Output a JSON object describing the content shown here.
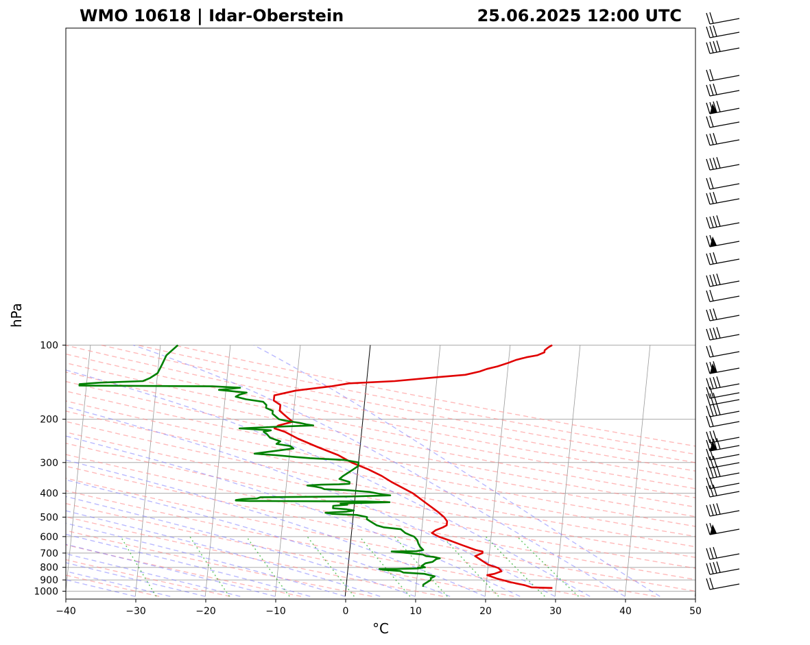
{
  "chart_data": {
    "type": "line",
    "title_left": "WMO 10618 | Idar-Oberstein",
    "title_right": "25.06.2025 12:00 UTC",
    "xlabel": "°C",
    "ylabel": "hPa",
    "xlim": [
      -40,
      50
    ],
    "ylim": [
      1000,
      100
    ],
    "y_scale": "log",
    "x_ticks": [
      -40,
      -30,
      -20,
      -10,
      0,
      10,
      20,
      30,
      40,
      50
    ],
    "x_tick_labels": [
      "−40",
      "−30",
      "−20",
      "−10",
      "0",
      "10",
      "20",
      "30",
      "40",
      "50"
    ],
    "y_ticks": [
      1000,
      900,
      800,
      700,
      600,
      500,
      400,
      300,
      200,
      100
    ],
    "y_tick_labels": [
      "1000",
      "900",
      "800",
      "700",
      "600",
      "500",
      "400",
      "300",
      "200",
      "100"
    ],
    "grid": true,
    "series": [
      {
        "color": "#e00000",
        "points": [
          [
            970,
            29.5
          ],
          [
            965,
            26.5
          ],
          [
            945,
            25.5
          ],
          [
            920,
            23.5
          ],
          [
            890,
            21.5
          ],
          [
            860,
            20
          ],
          [
            850,
            21
          ],
          [
            830,
            22
          ],
          [
            805,
            21.5
          ],
          [
            780,
            20
          ],
          [
            750,
            19
          ],
          [
            720,
            18
          ],
          [
            700,
            19
          ],
          [
            690,
            19
          ],
          [
            680,
            18
          ],
          [
            650,
            16
          ],
          [
            620,
            14
          ],
          [
            600,
            12.5
          ],
          [
            580,
            11.5
          ],
          [
            565,
            12
          ],
          [
            550,
            13
          ],
          [
            540,
            13.5
          ],
          [
            520,
            13.5
          ],
          [
            500,
            13
          ],
          [
            475,
            12
          ],
          [
            440,
            10.3
          ],
          [
            400,
            8.2
          ],
          [
            360,
            5
          ],
          [
            340,
            3.5
          ],
          [
            320,
            1.5
          ],
          [
            300,
            -1
          ],
          [
            280,
            -3
          ],
          [
            260,
            -6
          ],
          [
            240,
            -9
          ],
          [
            225,
            -11
          ],
          [
            218,
            -12.5
          ],
          [
            212,
            -12
          ],
          [
            205,
            -10
          ],
          [
            195,
            -11
          ],
          [
            185,
            -12
          ],
          [
            175,
            -12
          ],
          [
            168,
            -13
          ],
          [
            160,
            -13
          ],
          [
            153,
            -10
          ],
          [
            147,
            -5
          ],
          [
            143,
            -2.5
          ],
          [
            140,
            4
          ],
          [
            135,
            10
          ],
          [
            132,
            14
          ],
          [
            128,
            16
          ],
          [
            125,
            17
          ],
          [
            122,
            18.5
          ],
          [
            118,
            20
          ],
          [
            115,
            21
          ],
          [
            112,
            22.5
          ],
          [
            110,
            24
          ],
          [
            107,
            25
          ],
          [
            105,
            25
          ],
          [
            102,
            25.5
          ],
          [
            100,
            26
          ]
        ]
      },
      {
        "color": "#008000",
        "points": [
          [
            960,
            11
          ],
          [
            940,
            11
          ],
          [
            920,
            11.5
          ],
          [
            900,
            12
          ],
          [
            885,
            12
          ],
          [
            870,
            12.5
          ],
          [
            850,
            11
          ],
          [
            840,
            8
          ],
          [
            828,
            7.5
          ],
          [
            818,
            5
          ],
          [
            812,
            4.5
          ],
          [
            812,
            7
          ],
          [
            810,
            9
          ],
          [
            808,
            10
          ],
          [
            803,
            10.5
          ],
          [
            802,
            10
          ],
          [
            800,
            11
          ],
          [
            790,
            10.5
          ],
          [
            770,
            11
          ],
          [
            760,
            12
          ],
          [
            740,
            12.5
          ],
          [
            735,
            13
          ],
          [
            725,
            12
          ],
          [
            720,
            11
          ],
          [
            710,
            10.5
          ],
          [
            700,
            8.5
          ],
          [
            690,
            6
          ],
          [
            688,
            9.5
          ],
          [
            680,
            10.5
          ],
          [
            660,
            10
          ],
          [
            640,
            9.7
          ],
          [
            620,
            9.5
          ],
          [
            600,
            9
          ],
          [
            590,
            8.3
          ],
          [
            580,
            7.7
          ],
          [
            560,
            7
          ],
          [
            550,
            4.5
          ],
          [
            540,
            3.5
          ],
          [
            520,
            2.5
          ],
          [
            510,
            2
          ],
          [
            500,
            2
          ],
          [
            490,
            0.5
          ],
          [
            485,
            -3
          ],
          [
            480,
            -4
          ],
          [
            475,
            -1
          ],
          [
            470,
            0
          ],
          [
            465,
            -1
          ],
          [
            460,
            -3
          ],
          [
            450,
            -3
          ],
          [
            445,
            -1
          ],
          [
            440,
            -2
          ],
          [
            435,
            5
          ],
          [
            432,
            1.5
          ],
          [
            430,
            -15
          ],
          [
            428,
            -17
          ],
          [
            426,
            -17
          ],
          [
            422,
            -16
          ],
          [
            420,
            -14
          ],
          [
            415,
            -13.5
          ],
          [
            412,
            0
          ],
          [
            408,
            5
          ],
          [
            405,
            4
          ],
          [
            400,
            3
          ],
          [
            395,
            2
          ],
          [
            388,
            -1.5
          ],
          [
            385,
            -4.5
          ],
          [
            380,
            -5
          ],
          [
            375,
            -6
          ],
          [
            372,
            -7
          ],
          [
            369,
            -5
          ],
          [
            368,
            -2.5
          ],
          [
            366,
            -1
          ],
          [
            360,
            -1
          ],
          [
            350,
            -2.5
          ],
          [
            340,
            -2
          ],
          [
            325,
            -1
          ],
          [
            310,
            0
          ],
          [
            300,
            0
          ],
          [
            293,
            -2
          ],
          [
            288,
            -7
          ],
          [
            285,
            -9
          ],
          [
            280,
            -12
          ],
          [
            276,
            -15
          ],
          [
            270,
            -12.5
          ],
          [
            263,
            -9.5
          ],
          [
            257,
            -10
          ],
          [
            252,
            -12
          ],
          [
            246,
            -11.5
          ],
          [
            238,
            -13
          ],
          [
            230,
            -13.5
          ],
          [
            225,
            -14
          ],
          [
            222,
            -13
          ],
          [
            218,
            -17.5
          ],
          [
            214,
            -11
          ],
          [
            212,
            -7
          ],
          [
            210,
            -8
          ],
          [
            207,
            -9
          ],
          [
            203,
            -11
          ],
          [
            200,
            -12
          ],
          [
            195,
            -12.5
          ],
          [
            190,
            -13
          ],
          [
            185,
            -13
          ],
          [
            180,
            -14
          ],
          [
            175,
            -14
          ],
          [
            170,
            -14.5
          ],
          [
            166,
            -17
          ],
          [
            162,
            -18.5
          ],
          [
            159,
            -18
          ],
          [
            156,
            -17
          ],
          [
            152,
            -21
          ],
          [
            149,
            -18
          ],
          [
            147,
            -22
          ],
          [
            146,
            -41
          ],
          [
            144,
            -41
          ],
          [
            142,
            -38
          ],
          [
            140,
            -32
          ],
          [
            136,
            -31
          ],
          [
            130,
            -30
          ],
          [
            120,
            -29.5
          ],
          [
            110,
            -29
          ],
          [
            100,
            -27.5
          ]
        ]
      }
    ]
  }
}
